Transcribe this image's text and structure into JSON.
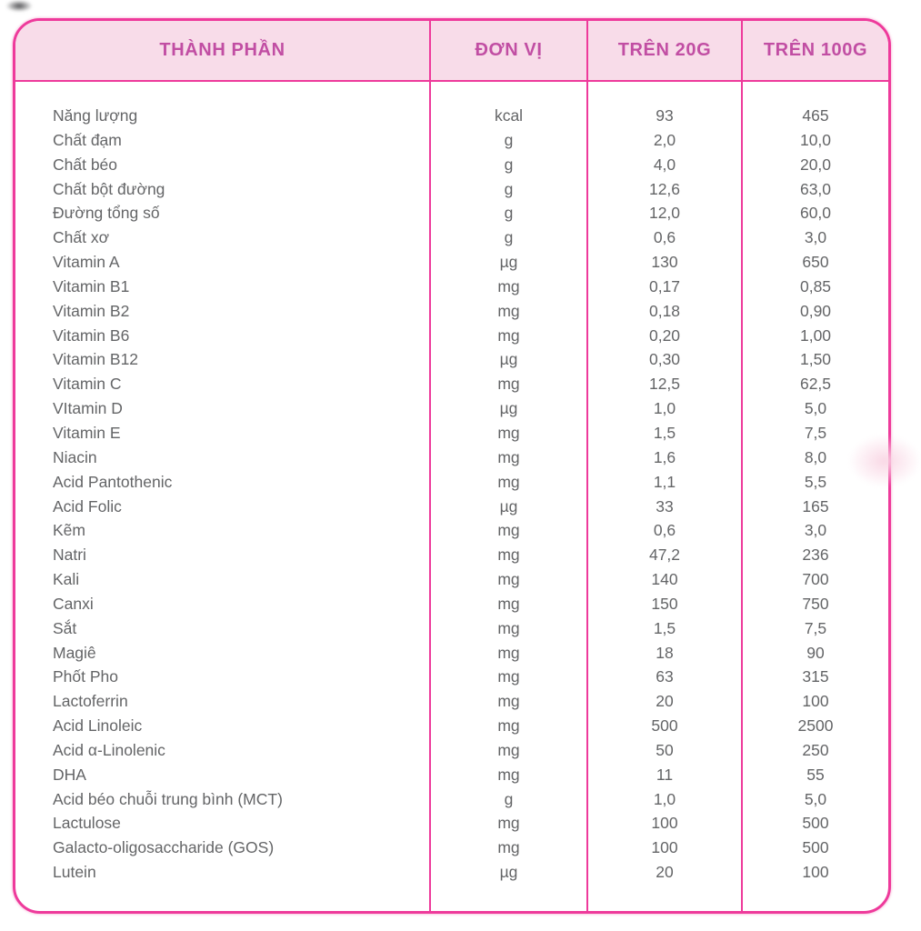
{
  "colors": {
    "frame_pink": "#ee3a9b",
    "header_background": "#f8dce9",
    "header_text": "#c14ea3",
    "body_text": "#646567",
    "page_background": "#ffffff"
  },
  "table": {
    "headers": [
      "THÀNH PHẦN",
      "ĐƠN VỊ",
      "TRÊN 20G",
      "TRÊN 100G"
    ],
    "rows": [
      {
        "name": "Năng lượng",
        "unit": "kcal",
        "per_20g": "93",
        "per_100g": "465"
      },
      {
        "name": "Chất đạm",
        "unit": "g",
        "per_20g": "2,0",
        "per_100g": "10,0"
      },
      {
        "name": "Chất béo",
        "unit": "g",
        "per_20g": "4,0",
        "per_100g": "20,0"
      },
      {
        "name": "Chất bột đường",
        "unit": "g",
        "per_20g": "12,6",
        "per_100g": "63,0"
      },
      {
        "name": "Đường tổng số",
        "unit": "g",
        "per_20g": "12,0",
        "per_100g": "60,0"
      },
      {
        "name": "Chất xơ",
        "unit": "g",
        "per_20g": "0,6",
        "per_100g": "3,0"
      },
      {
        "name": "Vitamin A",
        "unit": "µg",
        "per_20g": "130",
        "per_100g": "650"
      },
      {
        "name": "Vitamin B1",
        "unit": "mg",
        "per_20g": "0,17",
        "per_100g": "0,85"
      },
      {
        "name": "Vitamin B2",
        "unit": "mg",
        "per_20g": "0,18",
        "per_100g": "0,90"
      },
      {
        "name": "Vitamin B6",
        "unit": "mg",
        "per_20g": "0,20",
        "per_100g": "1,00"
      },
      {
        "name": "Vitamin B12",
        "unit": "µg",
        "per_20g": "0,30",
        "per_100g": "1,50"
      },
      {
        "name": "Vitamin C",
        "unit": "mg",
        "per_20g": "12,5",
        "per_100g": "62,5"
      },
      {
        "name": "VItamin D",
        "unit": "µg",
        "per_20g": "1,0",
        "per_100g": "5,0"
      },
      {
        "name": "Vitamin E",
        "unit": "mg",
        "per_20g": "1,5",
        "per_100g": "7,5"
      },
      {
        "name": "Niacin",
        "unit": "mg",
        "per_20g": "1,6",
        "per_100g": "8,0"
      },
      {
        "name": "Acid Pantothenic",
        "unit": "mg",
        "per_20g": "1,1",
        "per_100g": "5,5"
      },
      {
        "name": "Acid Folic",
        "unit": "µg",
        "per_20g": "33",
        "per_100g": "165"
      },
      {
        "name": "Kẽm",
        "unit": "mg",
        "per_20g": "0,6",
        "per_100g": "3,0"
      },
      {
        "name": "Natri",
        "unit": "mg",
        "per_20g": "47,2",
        "per_100g": "236"
      },
      {
        "name": "Kali",
        "unit": "mg",
        "per_20g": "140",
        "per_100g": "700"
      },
      {
        "name": "Canxi",
        "unit": "mg",
        "per_20g": "150",
        "per_100g": "750"
      },
      {
        "name": "Sắt",
        "unit": "mg",
        "per_20g": "1,5",
        "per_100g": "7,5"
      },
      {
        "name": "Magiê",
        "unit": "mg",
        "per_20g": "18",
        "per_100g": "90"
      },
      {
        "name": "Phốt Pho",
        "unit": "mg",
        "per_20g": "63",
        "per_100g": "315"
      },
      {
        "name": "Lactoferrin",
        "unit": "mg",
        "per_20g": "20",
        "per_100g": "100"
      },
      {
        "name": "Acid Linoleic",
        "unit": "mg",
        "per_20g": "500",
        "per_100g": "2500"
      },
      {
        "name": "Acid α-Linolenic",
        "unit": "mg",
        "per_20g": "50",
        "per_100g": "250"
      },
      {
        "name": "DHA",
        "unit": "mg",
        "per_20g": "11",
        "per_100g": "55"
      },
      {
        "name": "Acid béo chuỗi trung bình (MCT)",
        "unit": "g",
        "per_20g": "1,0",
        "per_100g": "5,0"
      },
      {
        "name": "Lactulose",
        "unit": "mg",
        "per_20g": "100",
        "per_100g": "500"
      },
      {
        "name": "Galacto-oligosaccharide (GOS)",
        "unit": "mg",
        "per_20g": "100",
        "per_100g": "500"
      },
      {
        "name": "Lutein",
        "unit": "µg",
        "per_20g": "20",
        "per_100g": "100"
      }
    ]
  }
}
